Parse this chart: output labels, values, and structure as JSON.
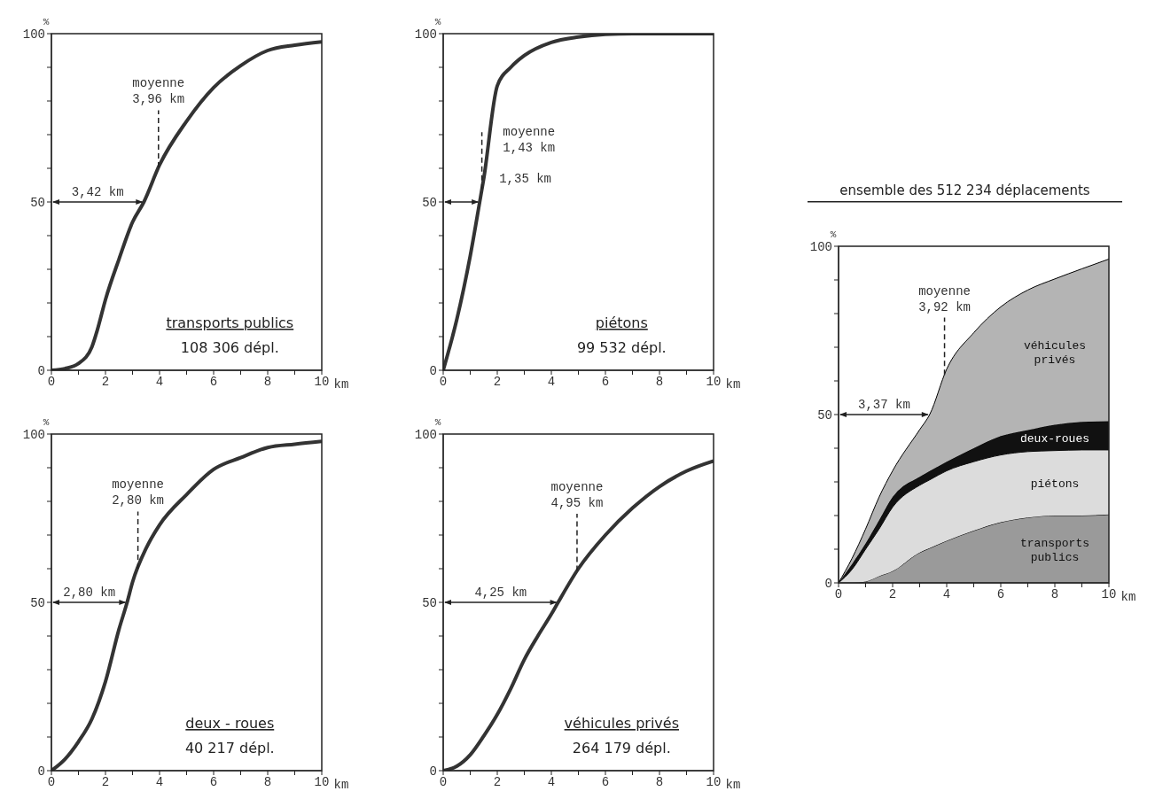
{
  "chart_data": [
    {
      "type": "line",
      "title": "transports publics",
      "subtitle": "108 306 dépl.",
      "xlabel": "km",
      "ylabel": "%",
      "x": [
        0,
        0.5,
        1,
        1.5,
        1.7,
        2,
        2.5,
        3,
        3.42,
        4,
        5,
        6,
        7,
        8,
        9,
        10
      ],
      "series": [
        {
          "color": "#333333",
          "values": [
            0,
            0.5,
            2,
            7,
            12,
            21,
            33,
            44,
            50,
            61,
            74,
            84,
            90.5,
            95,
            96.6,
            97.6
          ]
        }
      ],
      "xlim": [
        0,
        10
      ],
      "xticks": [
        0,
        {
          "value": 1,
          "label": null
        },
        2,
        {
          "value": 3,
          "label": null
        },
        4,
        {
          "value": 5,
          "label": null
        },
        6,
        {
          "value": 7,
          "label": null
        },
        8,
        {
          "value": 9,
          "label": null
        },
        10
      ],
      "ylim": [
        0,
        100
      ],
      "yticks": [
        0,
        {
          "value": 10,
          "label": null
        },
        {
          "value": 20,
          "label": null
        },
        {
          "value": 30,
          "label": null
        },
        {
          "value": 40,
          "label": null
        },
        50,
        {
          "value": 60,
          "label": null
        },
        {
          "value": 70,
          "label": null
        },
        {
          "value": 80,
          "label": null
        },
        {
          "value": 90,
          "label": null
        },
        100
      ],
      "ref_lines": [
        {
          "axis": "x",
          "value": 3.96,
          "label": "moyenne\n3,96 km",
          "line_style": "dashed"
        }
      ],
      "annotations": [
        {
          "text": "3,42 km",
          "x": 3.42,
          "y": 50
        }
      ]
    },
    {
      "type": "line",
      "title": "piétons",
      "subtitle": "99 532 dépl.",
      "xlabel": "km",
      "ylabel": "%",
      "x": [
        0,
        0.5,
        1,
        1.35,
        1.5,
        2,
        2.5,
        3,
        4,
        5,
        6,
        7,
        8,
        9,
        10
      ],
      "series": [
        {
          "color": "#333333",
          "values": [
            0,
            15,
            34,
            50,
            57,
            84.5,
            90,
            93.5,
            97.4,
            99,
            99.8,
            100,
            100,
            100,
            100
          ]
        }
      ],
      "xlim": [
        0,
        10
      ],
      "xticks": [
        0,
        {
          "value": 1,
          "label": null
        },
        2,
        {
          "value": 3,
          "label": null
        },
        4,
        {
          "value": 5,
          "label": null
        },
        6,
        {
          "value": 7,
          "label": null
        },
        8,
        {
          "value": 9,
          "label": null
        },
        10
      ],
      "ylim": [
        0,
        100
      ],
      "yticks": [
        0,
        {
          "value": 10,
          "label": null
        },
        {
          "value": 20,
          "label": null
        },
        {
          "value": 30,
          "label": null
        },
        {
          "value": 40,
          "label": null
        },
        50,
        {
          "value": 60,
          "label": null
        },
        {
          "value": 70,
          "label": null
        },
        {
          "value": 80,
          "label": null
        },
        {
          "value": 90,
          "label": null
        },
        100
      ],
      "ref_lines": [
        {
          "axis": "x",
          "value": 1.43,
          "label": "moyenne\n1,43 km",
          "line_style": "dashed"
        }
      ],
      "annotations": [
        {
          "text": "1,35 km",
          "x": 1.35,
          "y": 50
        }
      ]
    },
    {
      "type": "line",
      "title": "deux - roues",
      "subtitle": "40 217 dépl.",
      "xlabel": "km",
      "ylabel": "%",
      "x": [
        0,
        0.5,
        1,
        1.5,
        2,
        2.5,
        2.8,
        3,
        3.5,
        4,
        5,
        6,
        7,
        8,
        9,
        10
      ],
      "series": [
        {
          "color": "#333333",
          "values": [
            0,
            3.4,
            8.6,
            15.4,
            26.5,
            42,
            50,
            56,
            66,
            73,
            82,
            89.5,
            93,
            96,
            97,
            97.8
          ]
        }
      ],
      "xlim": [
        0,
        10
      ],
      "xticks": [
        0,
        {
          "value": 1,
          "label": null
        },
        2,
        {
          "value": 3,
          "label": null
        },
        4,
        {
          "value": 5,
          "label": null
        },
        6,
        {
          "value": 7,
          "label": null
        },
        8,
        {
          "value": 9,
          "label": null
        },
        10
      ],
      "ylim": [
        0,
        100
      ],
      "yticks": [
        0,
        {
          "value": 10,
          "label": null
        },
        {
          "value": 20,
          "label": null
        },
        {
          "value": 30,
          "label": null
        },
        {
          "value": 40,
          "label": null
        },
        50,
        {
          "value": 60,
          "label": null
        },
        {
          "value": 70,
          "label": null
        },
        {
          "value": 80,
          "label": null
        },
        {
          "value": 90,
          "label": null
        },
        100
      ],
      "ref_lines": [
        {
          "axis": "x",
          "value": 3.2,
          "label": "moyenne\n2,80 km",
          "line_style": "dashed"
        }
      ],
      "annotations": [
        {
          "text": "2,80 km",
          "x": 2.8,
          "y": 50
        }
      ]
    },
    {
      "type": "line",
      "title": "véhicules privés",
      "subtitle": "264 179 dépl.",
      "xlabel": "km",
      "ylabel": "%",
      "x": [
        0,
        0.5,
        1,
        1.5,
        2,
        2.5,
        3,
        3.5,
        4,
        4.25,
        5,
        6,
        7,
        8,
        9,
        10
      ],
      "series": [
        {
          "color": "#333333",
          "values": [
            0,
            1.3,
            4.7,
            10.3,
            16.7,
            24.4,
            33,
            40,
            46.5,
            50,
            60,
            70,
            78,
            84.4,
            89,
            92
          ]
        }
      ],
      "xlim": [
        0,
        10
      ],
      "xticks": [
        0,
        {
          "value": 1,
          "label": null
        },
        2,
        {
          "value": 3,
          "label": null
        },
        4,
        {
          "value": 5,
          "label": null
        },
        6,
        {
          "value": 7,
          "label": null
        },
        8,
        {
          "value": 9,
          "label": null
        },
        10
      ],
      "ylim": [
        0,
        100
      ],
      "yticks": [
        0,
        {
          "value": 10,
          "label": null
        },
        {
          "value": 20,
          "label": null
        },
        {
          "value": 30,
          "label": null
        },
        {
          "value": 40,
          "label": null
        },
        50,
        {
          "value": 60,
          "label": null
        },
        {
          "value": 70,
          "label": null
        },
        {
          "value": 80,
          "label": null
        },
        {
          "value": 90,
          "label": null
        },
        100
      ],
      "ref_lines": [
        {
          "axis": "x",
          "value": 4.95,
          "label": "moyenne\n4,95 km",
          "line_style": "dashed"
        }
      ],
      "annotations": [
        {
          "text": "4,25 km",
          "x": 4.25,
          "y": 50
        }
      ]
    },
    {
      "type": "area",
      "stacked": true,
      "title": "ensemble des 512 234 déplacements",
      "xlabel": "km",
      "ylabel": "%",
      "x": [
        0,
        0.5,
        1,
        1.5,
        2,
        3,
        3.37,
        4,
        5,
        6,
        7,
        8,
        9,
        10
      ],
      "series": [
        {
          "name": "transports publics",
          "color": "#9a9a9a",
          "values": [
            0,
            0,
            0.4,
            2,
            3.5,
            9,
            10.3,
            12.5,
            15.5,
            18,
            19.4,
            20,
            20,
            20.3
          ]
        },
        {
          "name": "piétons",
          "color": "#dcdcdc",
          "values": [
            0,
            4,
            9.6,
            14,
            19,
            20,
            20.3,
            20.8,
            20.5,
            20,
            19.6,
            19.3,
            19.5,
            19.2
          ]
        },
        {
          "name": "deux-roues",
          "color": "#111111",
          "values": [
            0,
            1.6,
            1.7,
            2.6,
            3,
            2.5,
            2.6,
            2.7,
            4,
            5.6,
            6.4,
            7.7,
            8.3,
            8.5
          ]
        },
        {
          "name": "véhicules privés",
          "color": "#b4b4b4",
          "values": [
            0,
            1.7,
            4.3,
            6.9,
            7.8,
            14,
            16.8,
            27.5,
            34.3,
            38.4,
            41.6,
            43.3,
            45.5,
            48.2
          ]
        }
      ],
      "xlim": [
        0,
        10
      ],
      "xticks": [
        0,
        {
          "value": 1,
          "label": null
        },
        2,
        {
          "value": 3,
          "label": null
        },
        4,
        {
          "value": 5,
          "label": null
        },
        6,
        {
          "value": 7,
          "label": null
        },
        8,
        {
          "value": 9,
          "label": null
        },
        10
      ],
      "ylim": [
        0,
        100
      ],
      "yticks": [
        0,
        {
          "value": 10,
          "label": null
        },
        {
          "value": 20,
          "label": null
        },
        {
          "value": 30,
          "label": null
        },
        {
          "value": 40,
          "label": null
        },
        50,
        {
          "value": 60,
          "label": null
        },
        {
          "value": 70,
          "label": null
        },
        {
          "value": 80,
          "label": null
        },
        {
          "value": 90,
          "label": null
        },
        100
      ],
      "ref_lines": [
        {
          "axis": "x",
          "value": 3.92,
          "label": "moyenne\n3,92 km",
          "line_style": "dashed"
        }
      ],
      "annotations": [
        {
          "text": "3,37 km",
          "x": 3.37,
          "y": 50
        }
      ]
    }
  ]
}
